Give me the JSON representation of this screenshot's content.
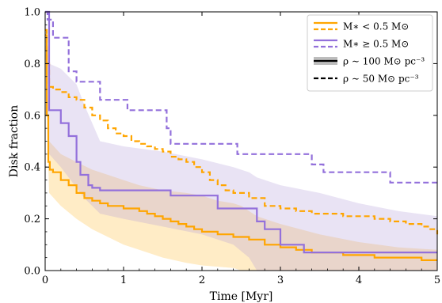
{
  "chart_data": {
    "type": "line",
    "xlabel": "Time [Myr]",
    "ylabel": "Disk fraction",
    "xlim": [
      0,
      5
    ],
    "ylim": [
      0,
      1
    ],
    "xticks": [
      "0",
      "1",
      "2",
      "3",
      "4",
      "5"
    ],
    "yticks": [
      "0.0",
      "0.2",
      "0.4",
      "0.6",
      "0.8",
      "1.0"
    ],
    "grid": false,
    "legend_placement": "top-right",
    "legend": {
      "low_mass": "M∗ < 0.5 M⊙",
      "high_mass": "M∗ ≥ 0.5 M⊙",
      "rho_100": "ρ ∼ 100 M⊙ pc⁻³",
      "rho_50": "ρ ∼ 50 M⊙ pc⁻³"
    },
    "colors": {
      "low_mass": "#ffa500",
      "high_mass": "#9370db",
      "low_band": "#ffd580",
      "high_band": "#b19cd9"
    },
    "series": [
      {
        "group": "low_mass",
        "style": "solid",
        "x": [
          0,
          0.02,
          0.04,
          0.06,
          0.1,
          0.2,
          0.3,
          0.4,
          0.5,
          0.6,
          0.7,
          0.8,
          0.9,
          1.0,
          1.1,
          1.2,
          1.3,
          1.4,
          1.5,
          1.6,
          1.7,
          1.8,
          1.9,
          2.0,
          2.1,
          2.2,
          2.4,
          2.6,
          2.8,
          3.0,
          3.2,
          3.4,
          3.6,
          3.8,
          4.0,
          4.2,
          4.4,
          4.6,
          4.8,
          5.0
        ],
        "y": [
          0.91,
          0.6,
          0.42,
          0.39,
          0.38,
          0.35,
          0.33,
          0.3,
          0.28,
          0.27,
          0.26,
          0.25,
          0.25,
          0.24,
          0.24,
          0.23,
          0.22,
          0.21,
          0.2,
          0.19,
          0.18,
          0.17,
          0.16,
          0.15,
          0.15,
          0.14,
          0.13,
          0.12,
          0.1,
          0.09,
          0.08,
          0.07,
          0.07,
          0.06,
          0.06,
          0.05,
          0.05,
          0.05,
          0.04,
          0.04
        ]
      },
      {
        "group": "low_mass",
        "style": "dashed",
        "x": [
          0,
          0.02,
          0.05,
          0.1,
          0.2,
          0.3,
          0.4,
          0.5,
          0.6,
          0.7,
          0.8,
          0.9,
          1.0,
          1.1,
          1.2,
          1.3,
          1.4,
          1.5,
          1.6,
          1.7,
          1.8,
          1.9,
          2.0,
          2.1,
          2.2,
          2.3,
          2.4,
          2.6,
          2.8,
          3.0,
          3.2,
          3.4,
          3.6,
          3.8,
          4.0,
          4.2,
          4.4,
          4.6,
          4.8,
          4.9,
          5.0
        ],
        "y": [
          0.93,
          0.8,
          0.71,
          0.7,
          0.69,
          0.67,
          0.66,
          0.63,
          0.6,
          0.58,
          0.55,
          0.53,
          0.52,
          0.5,
          0.49,
          0.48,
          0.47,
          0.46,
          0.44,
          0.43,
          0.42,
          0.4,
          0.38,
          0.35,
          0.33,
          0.31,
          0.3,
          0.28,
          0.25,
          0.24,
          0.23,
          0.22,
          0.22,
          0.21,
          0.21,
          0.2,
          0.19,
          0.18,
          0.17,
          0.16,
          0.14
        ]
      },
      {
        "group": "high_mass",
        "style": "solid",
        "x": [
          0,
          0.05,
          0.2,
          0.3,
          0.4,
          0.45,
          0.55,
          0.6,
          0.7,
          1.6,
          2.2,
          2.6,
          2.7,
          2.8,
          3.0,
          3.25,
          3.3,
          5.0
        ],
        "y": [
          1.0,
          0.62,
          0.57,
          0.52,
          0.42,
          0.37,
          0.33,
          0.32,
          0.31,
          0.29,
          0.24,
          0.24,
          0.19,
          0.16,
          0.1,
          0.1,
          0.07,
          0.07
        ]
      },
      {
        "group": "high_mass",
        "style": "dashed",
        "x": [
          0,
          0.03,
          0.1,
          0.25,
          0.3,
          0.4,
          0.7,
          1.05,
          1.55,
          1.6,
          2.45,
          3.4,
          3.55,
          4.4,
          5.0
        ],
        "y": [
          1.0,
          0.97,
          0.9,
          0.9,
          0.77,
          0.73,
          0.66,
          0.62,
          0.55,
          0.49,
          0.45,
          0.41,
          0.38,
          0.34,
          0.34
        ]
      }
    ],
    "bands": [
      {
        "group": "low_mass",
        "x": [
          0,
          0.05,
          0.2,
          0.4,
          0.6,
          0.8,
          1.0,
          1.2,
          1.5,
          1.8,
          2.0,
          2.2,
          2.4,
          2.5,
          2.55,
          2.6,
          2.7,
          2.8,
          3.0,
          3.5,
          4.0,
          4.5,
          5.0
        ],
        "lower": [
          0.82,
          0.3,
          0.25,
          0.2,
          0.16,
          0.13,
          0.1,
          0.08,
          0.05,
          0.03,
          0.02,
          0.015,
          0.01,
          0.0,
          0.0,
          0.0,
          0.0,
          0.0,
          0.0,
          0.0,
          0.0,
          0.0,
          0.0
        ],
        "upper": [
          1.0,
          0.5,
          0.45,
          0.42,
          0.39,
          0.37,
          0.35,
          0.33,
          0.31,
          0.3,
          0.29,
          0.27,
          0.26,
          0.25,
          0.24,
          0.23,
          0.21,
          0.2,
          0.18,
          0.14,
          0.11,
          0.09,
          0.08
        ]
      },
      {
        "group": "high_mass",
        "x": [
          0,
          0.05,
          0.2,
          0.4,
          0.5,
          0.7,
          1.0,
          1.5,
          2.0,
          2.4,
          2.6,
          2.7,
          3.0,
          3.5,
          4.0,
          4.5,
          5.0
        ],
        "lower": [
          0.9,
          0.45,
          0.4,
          0.32,
          0.28,
          0.22,
          0.2,
          0.17,
          0.14,
          0.1,
          0.05,
          0.0,
          0.0,
          0.0,
          0.0,
          0.0,
          0.0
        ],
        "upper": [
          1.0,
          0.8,
          0.78,
          0.72,
          0.64,
          0.5,
          0.48,
          0.46,
          0.43,
          0.4,
          0.38,
          0.36,
          0.33,
          0.3,
          0.26,
          0.23,
          0.21
        ]
      }
    ]
  }
}
